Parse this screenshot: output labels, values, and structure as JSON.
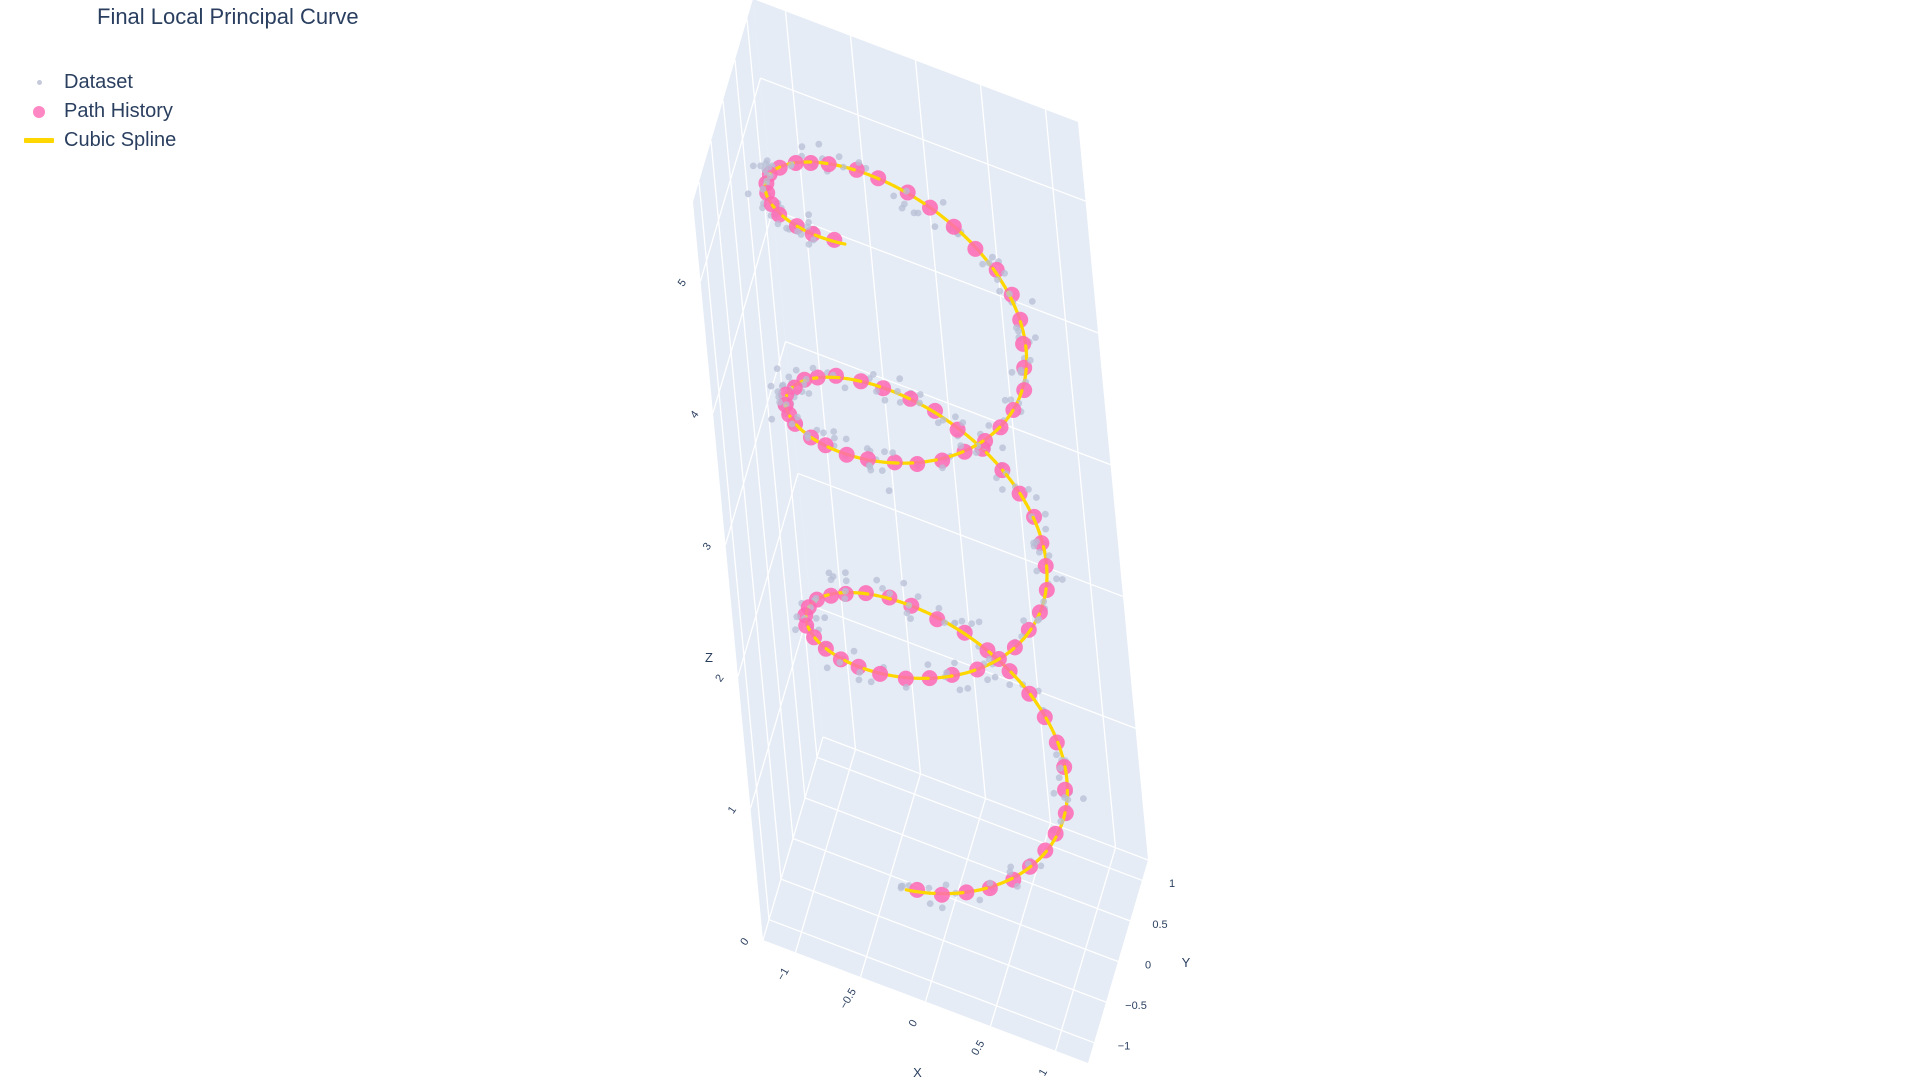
{
  "chart_data": {
    "type": "scatter3d",
    "title": "Final Local Principal Curve",
    "legend": [
      {
        "name": "Dataset",
        "symbol": "dot",
        "color": "#c5cadb"
      },
      {
        "name": "Path History",
        "symbol": "circle",
        "color": "#ff69b4"
      },
      {
        "name": "Cubic Spline",
        "symbol": "line",
        "color": "#ffd700"
      }
    ],
    "legend_position": "top-left",
    "axes": {
      "x": {
        "title": "X",
        "range": [
          -1.25,
          1.25
        ],
        "ticks": [
          -1,
          -0.5,
          0,
          0.5,
          1
        ],
        "tick_labels": [
          "−1",
          "−0.5",
          "0",
          "0.5",
          "1"
        ]
      },
      "y": {
        "title": "Y",
        "range": [
          -1.25,
          1.25
        ],
        "ticks": [
          -1,
          -0.5,
          0,
          0.5,
          1
        ],
        "tick_labels": [
          "−1",
          "−0.5",
          "0",
          "0.5",
          "1"
        ]
      },
      "z": {
        "title": "Z",
        "range": [
          0,
          5.6
        ],
        "ticks": [
          0,
          1,
          2,
          3,
          4,
          5
        ],
        "tick_labels": [
          "0",
          "1",
          "2",
          "3",
          "4",
          "5"
        ]
      }
    },
    "grid": true,
    "curve": {
      "shape": "helix",
      "radius": 0.95,
      "turns": 3,
      "z_range": [
        0.6,
        5.5
      ]
    },
    "series": [
      {
        "name": "Dataset",
        "count": 300,
        "noise": 0.12
      },
      {
        "name": "Path History",
        "count": 95
      },
      {
        "name": "Cubic Spline"
      }
    ]
  }
}
